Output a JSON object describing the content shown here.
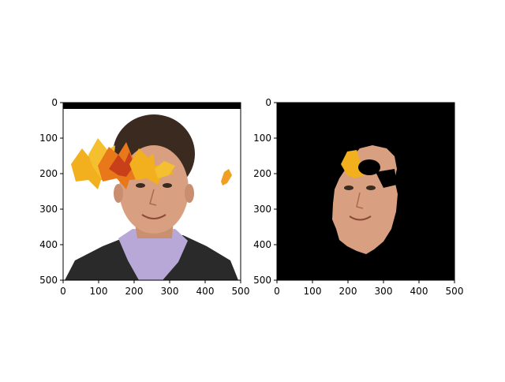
{
  "figure": {
    "background": "#ffffff"
  },
  "chart_data": [
    {
      "type": "image",
      "title": "",
      "xlabel": "",
      "ylabel": "",
      "xlim": [
        0,
        500
      ],
      "ylim": [
        500,
        0
      ],
      "xticks": [
        0,
        100,
        200,
        300,
        400,
        500
      ],
      "yticks": [
        0,
        100,
        200,
        300,
        400,
        500
      ],
      "xtick_labels": [
        "0",
        "100",
        "200",
        "300",
        "400",
        "500"
      ],
      "ytick_labels": [
        "0",
        "100",
        "200",
        "300",
        "400",
        "500"
      ],
      "grid": false,
      "content": "photo of a smiling man in a purple shirt and dark vest with autumn maple leaves overlaid across his forehead and one leaf at the right; black band along the top rows",
      "colors": {
        "leaf_yellow": "#f2b01e",
        "leaf_orange": "#e8781a",
        "leaf_red": "#c8401a",
        "shirt": "#b8a8d8",
        "vest": "#2a2a2a",
        "hair": "#3a2a20",
        "skin": "#d8a080"
      }
    },
    {
      "type": "image",
      "title": "",
      "xlabel": "",
      "ylabel": "",
      "xlim": [
        0,
        500
      ],
      "ylim": [
        500,
        0
      ],
      "xticks": [
        0,
        100,
        200,
        300,
        400,
        500
      ],
      "yticks": [
        0,
        100,
        200,
        300,
        400,
        500
      ],
      "xtick_labels": [
        "0",
        "100",
        "200",
        "300",
        "400",
        "500"
      ],
      "ytick_labels": [
        "0",
        "100",
        "200",
        "300",
        "400",
        "500"
      ],
      "grid": false,
      "content": "segmented face region on black background with a leaf fragment and a hole near the top of the forehead",
      "colors": {
        "background": "#000000",
        "skin": "#d8a080",
        "leaf_yellow": "#f2b01e"
      }
    }
  ]
}
